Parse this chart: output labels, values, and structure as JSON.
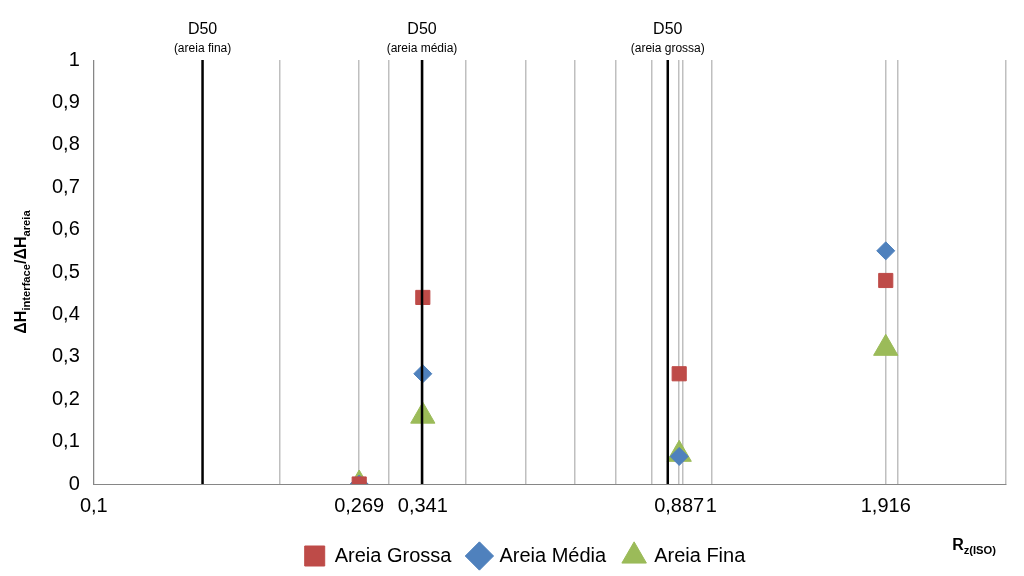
{
  "chart_data": {
    "type": "scatter",
    "xlabel": "R$_{z(ISO)}$",
    "ylabel": "ΔH$_{interface}$/ΔH$_{areia}$",
    "log": "x",
    "xlim": [
      0.1,
      3
    ],
    "ylim": [
      0,
      1
    ],
    "xticks": [
      {
        "value": 0.1,
        "label": "0,1"
      },
      {
        "value": 0.2,
        "label": null
      },
      {
        "value": 0.269,
        "label": "0,269"
      },
      {
        "value": 0.3,
        "label": null
      },
      {
        "value": 0.341,
        "label": "0,341"
      },
      {
        "value": 0.4,
        "label": null
      },
      {
        "value": 0.5,
        "label": null
      },
      {
        "value": 0.6,
        "label": null
      },
      {
        "value": 0.7,
        "label": null
      },
      {
        "value": 0.8,
        "label": null
      },
      {
        "value": 0.887,
        "label": "0,887"
      },
      {
        "value": 0.9,
        "label": null
      },
      {
        "value": 1,
        "label": "1"
      },
      {
        "value": 1.916,
        "label": "1,916"
      },
      {
        "value": 2,
        "label": null
      },
      {
        "value": 3,
        "label": null
      }
    ],
    "yticks": [
      0,
      {
        "value": 0.1,
        "label": "0,1"
      },
      {
        "value": 0.2,
        "label": "0,2"
      },
      {
        "value": 0.3,
        "label": "0,3"
      },
      {
        "value": 0.4,
        "label": "0,4"
      },
      {
        "value": 0.5,
        "label": "0,5"
      },
      {
        "value": 0.6,
        "label": "0,6"
      },
      {
        "value": 0.7,
        "label": "0,7"
      },
      {
        "value": 0.8,
        "label": "0,8"
      },
      {
        "value": 0.9,
        "label": "0,9"
      },
      1
    ],
    "grid": "x",
    "legend": "bottom",
    "series": [
      {
        "name": "Areia Grossa",
        "color": "#be4b48",
        "marker": "square",
        "x": [
          0.269,
          0.341,
          0.887,
          1.916
        ],
        "values": [
          0,
          0.44,
          0.26,
          0.48
        ]
      },
      {
        "name": "Areia Média",
        "color": "#4f81bd",
        "marker": "diamond",
        "x": [
          0.269,
          0.341,
          0.887,
          1.916
        ],
        "values": [
          0,
          0.26,
          0.065,
          0.55
        ]
      },
      {
        "name": "Areia Fina",
        "color": "#9bbb59",
        "marker": "triangle",
        "x": [
          0.269,
          0.341,
          0.887,
          1.916
        ],
        "values": [
          0,
          0.16,
          0.07,
          0.32
        ]
      }
    ],
    "ref_lines": [
      {
        "axis": "x",
        "value": 0.15,
        "label": "D50 (areia fina)",
        "color": "#000000"
      },
      {
        "axis": "x",
        "value": 0.34,
        "label": "D50 (areia média)",
        "color": "#000000"
      },
      {
        "axis": "x",
        "value": 0.85,
        "label": "D50 (areia grossa)",
        "color": "#000000"
      }
    ]
  }
}
